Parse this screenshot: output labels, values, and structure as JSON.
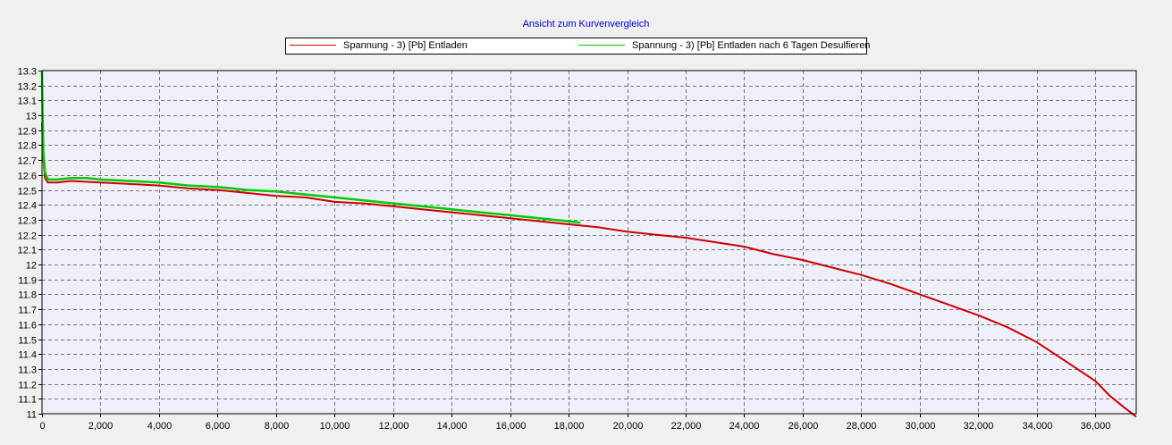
{
  "chart_data": {
    "type": "line",
    "title": "Ansicht zum Kurvenvergleich",
    "xlabel": "",
    "ylabel": "",
    "xlim": [
      0,
      37400
    ],
    "ylim": [
      11,
      13.3
    ],
    "x_ticks": [
      "0",
      "2,000",
      "4,000",
      "6,000",
      "8,000",
      "10,000",
      "12,000",
      "14,000",
      "16,000",
      "18,000",
      "20,000",
      "22,000",
      "24,000",
      "26,000",
      "28,000",
      "30,000",
      "32,000",
      "34,000",
      "36,000"
    ],
    "y_ticks": [
      "11",
      "11.1",
      "11.2",
      "11.3",
      "11.4",
      "11.5",
      "11.6",
      "11.7",
      "11.8",
      "11.9",
      "12",
      "12.1",
      "12.2",
      "12.3",
      "12.4",
      "12.5",
      "12.6",
      "12.7",
      "12.8",
      "12.9",
      "13",
      "13.1",
      "13.2",
      "13.3"
    ],
    "grid": true,
    "legend_position": "top-center",
    "plot_background": "#efeff9",
    "series": [
      {
        "name": "Spannung - 3) [Pb] Entladen",
        "color": "#cc0000",
        "x": [
          0,
          50,
          100,
          200,
          500,
          1000,
          2000,
          3000,
          4000,
          5000,
          6000,
          7000,
          8000,
          9000,
          10000,
          11000,
          12000,
          13000,
          14000,
          15000,
          16000,
          17000,
          18000,
          19000,
          20000,
          21000,
          22000,
          23000,
          24000,
          25000,
          26000,
          27000,
          28000,
          29000,
          30000,
          31000,
          32000,
          33000,
          34000,
          35000,
          36000,
          36500,
          37000,
          37400
        ],
        "y": [
          12.95,
          12.7,
          12.58,
          12.55,
          12.55,
          12.56,
          12.55,
          12.54,
          12.53,
          12.51,
          12.5,
          12.48,
          12.46,
          12.45,
          12.42,
          12.41,
          12.39,
          12.37,
          12.35,
          12.33,
          12.31,
          12.29,
          12.27,
          12.25,
          12.22,
          12.2,
          12.18,
          12.15,
          12.12,
          12.07,
          12.03,
          11.98,
          11.93,
          11.87,
          11.8,
          11.73,
          11.66,
          11.58,
          11.48,
          11.35,
          11.22,
          11.12,
          11.04,
          10.98
        ]
      },
      {
        "name": "Spannung - 3) [Pb] Entladen nach 6 Tagen Desulfieren",
        "color": "#00cc00",
        "x": [
          0,
          20,
          50,
          100,
          200,
          500,
          1000,
          1500,
          2000,
          3000,
          4000,
          5000,
          6000,
          7000,
          8000,
          9000,
          10000,
          11000,
          12000,
          13000,
          14000,
          15000,
          16000,
          17000,
          18000,
          18400
        ],
        "y": [
          13.3,
          13.0,
          12.75,
          12.62,
          12.57,
          12.57,
          12.58,
          12.58,
          12.57,
          12.56,
          12.55,
          12.53,
          12.52,
          12.5,
          12.49,
          12.47,
          12.45,
          12.43,
          12.41,
          12.39,
          12.37,
          12.35,
          12.33,
          12.31,
          12.29,
          12.28
        ]
      }
    ]
  }
}
